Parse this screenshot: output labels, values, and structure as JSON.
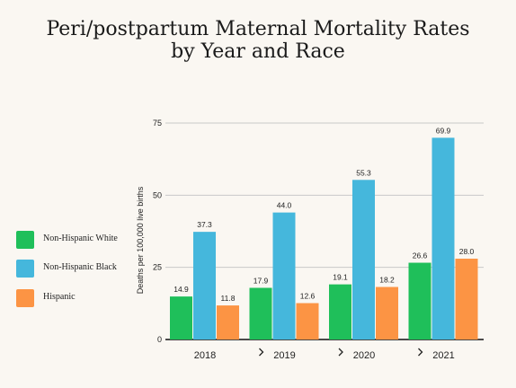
{
  "chart_data": {
    "type": "bar",
    "title": [
      "Peri/postpartum Maternal Mortality Rates",
      "by Year and Race"
    ],
    "ylabel": "Deaths per 100,000 live births",
    "xlabel": "",
    "categories": [
      "2018",
      "2019",
      "2020",
      "2021"
    ],
    "series": [
      {
        "name": "Non-Hispanic White",
        "color": "#1fbf5a",
        "values": [
          14.9,
          17.9,
          19.1,
          26.6
        ]
      },
      {
        "name": "Non-Hispanic Black",
        "color": "#45b7dc",
        "values": [
          37.3,
          44.0,
          55.3,
          69.9
        ]
      },
      {
        "name": "Hispanic",
        "color": "#fc9444",
        "values": [
          11.8,
          12.6,
          18.2,
          28.0
        ]
      }
    ],
    "ylim": [
      0,
      75
    ],
    "yticks": [
      0,
      25,
      50,
      75
    ],
    "grid": true,
    "legend_position": "left",
    "category_chevron_icon": "chevron-right-icon"
  }
}
